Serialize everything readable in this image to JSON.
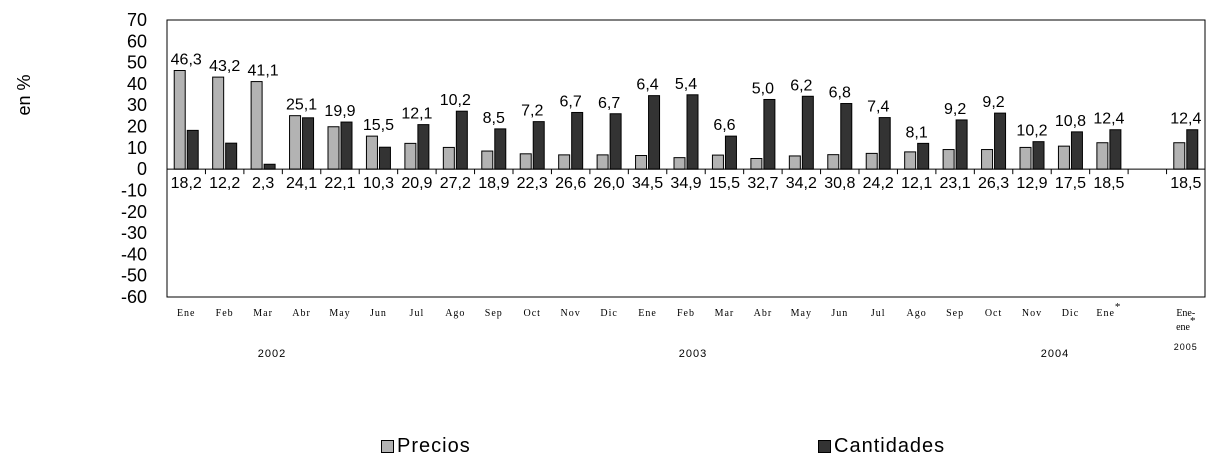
{
  "chart_data": {
    "type": "bar",
    "ylabel": "en %",
    "ylim": [
      -60,
      70
    ],
    "yticks": [
      "70",
      "60",
      "50",
      "40",
      "30",
      "20",
      "10",
      "0",
      "-10",
      "-20",
      "-30",
      "-40",
      "-50",
      "-60"
    ],
    "categories": [
      "Ene",
      "Feb",
      "Mar",
      "Abr",
      "May",
      "Jun",
      "Jul",
      "Ago",
      "Sep",
      "Oct",
      "Nov",
      "Dic",
      "Ene",
      "Feb",
      "Mar",
      "Abr",
      "May",
      "Jun",
      "Jul",
      "Ago",
      "Sep",
      "Oct",
      "Nov",
      "Dic",
      "Ene*",
      "",
      "Ene-ene*"
    ],
    "years": [
      "2002",
      "2003",
      "2004",
      "2005"
    ],
    "series": [
      {
        "name": "Precios",
        "color": "#b3b3b3",
        "values": [
          46.3,
          43.2,
          41.1,
          25.1,
          19.9,
          15.5,
          12.1,
          10.2,
          8.5,
          7.2,
          6.7,
          6.7,
          6.4,
          5.4,
          6.6,
          5.0,
          6.2,
          6.8,
          7.4,
          8.1,
          9.2,
          9.2,
          10.2,
          10.8,
          12.4,
          null,
          12.4
        ],
        "labels": [
          "46,3",
          "43,2",
          "41,1",
          "25,1",
          "19,9",
          "15,5",
          "12,1",
          "10,2",
          "8,5",
          "7,2",
          "6,7",
          "6,7",
          "6,4",
          "5,4",
          "6,6",
          "5,0",
          "6,2",
          "6,8",
          "7,4",
          "8,1",
          "9,2",
          "9,2",
          "10,2",
          "10,8",
          "12,4",
          "",
          "12,4"
        ]
      },
      {
        "name": "Cantidades",
        "color": "#333333",
        "values": [
          18.2,
          12.2,
          2.3,
          24.1,
          22.1,
          10.3,
          20.9,
          27.2,
          18.9,
          22.3,
          26.6,
          26.0,
          34.5,
          34.9,
          15.5,
          32.7,
          34.2,
          30.8,
          24.2,
          12.1,
          23.1,
          26.3,
          12.9,
          17.5,
          18.5,
          null,
          18.5
        ],
        "labels": [
          "18,2",
          "12,2",
          "2,3",
          "24,1",
          "22,1",
          "10,3",
          "20,9",
          "27,2",
          "18,9",
          "22,3",
          "26,6",
          "26,0",
          "34,5",
          "34,9",
          "15,5",
          "32,7",
          "34,2",
          "30,8",
          "24,2",
          "12,1",
          "23,1",
          "26,3",
          "12,9",
          "17,5",
          "18,5",
          "",
          "18,5"
        ]
      }
    ],
    "legend_position": "bottom",
    "grid": false
  }
}
